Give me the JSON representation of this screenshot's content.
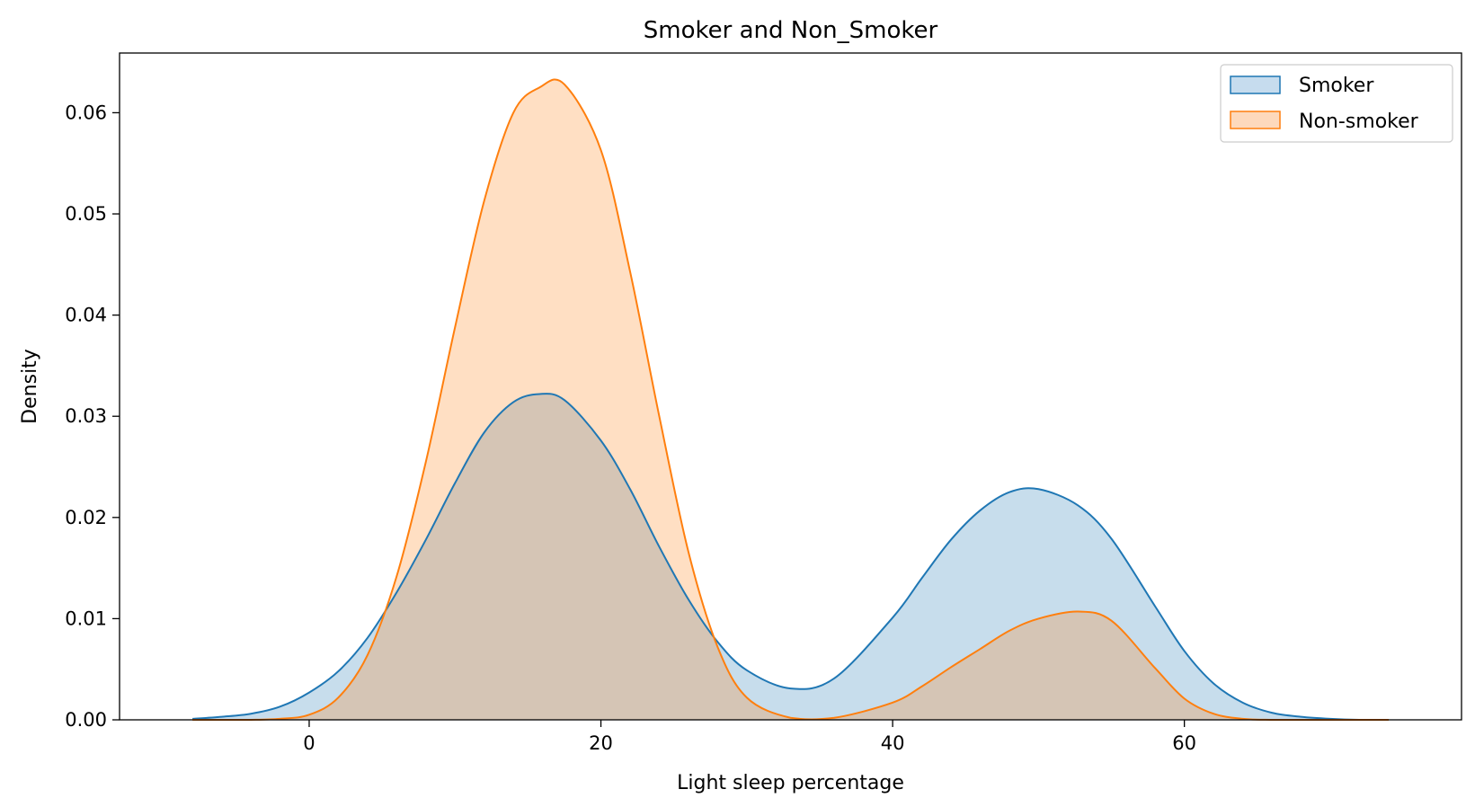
{
  "chart_data": {
    "type": "area",
    "title": "Smoker and Non_Smoker",
    "xlabel": "Light sleep percentage",
    "ylabel": "Density",
    "xlim": [
      -13,
      79
    ],
    "ylim": [
      0,
      0.0659
    ],
    "xticks": [
      0,
      20,
      40,
      60
    ],
    "yticks": [
      0.0,
      0.01,
      0.02,
      0.03,
      0.04,
      0.05,
      0.06
    ],
    "ytick_labels": [
      "0.00",
      "0.01",
      "0.02",
      "0.03",
      "0.04",
      "0.05",
      "0.06"
    ],
    "grid": false,
    "legend_position": "top-right",
    "x": [
      -8,
      -6,
      -4,
      -2,
      0,
      2,
      4,
      6,
      8,
      10,
      12,
      14,
      15.8,
      17.5,
      20,
      22,
      24,
      26,
      28,
      30,
      33,
      36,
      40,
      42,
      44,
      46,
      48,
      50,
      52.7,
      55,
      58,
      60,
      62,
      64,
      66,
      68,
      70,
      72,
      74
    ],
    "series": [
      {
        "name": "Smoker",
        "color": "#1f77b4",
        "fill": "#c6dcee",
        "values": [
          0.0001,
          0.0003,
          0.0006,
          0.0013,
          0.0027,
          0.0048,
          0.0081,
          0.0126,
          0.0178,
          0.0234,
          0.0284,
          0.0314,
          0.0322,
          0.0316,
          0.0276,
          0.0228,
          0.0171,
          0.0119,
          0.0077,
          0.0049,
          0.0031,
          0.0041,
          0.0101,
          0.014,
          0.0178,
          0.0207,
          0.0225,
          0.0228,
          0.0212,
          0.0179,
          0.0112,
          0.0068,
          0.0036,
          0.0017,
          0.0007,
          0.0003,
          0.0001,
          0.0,
          0.0
        ]
      },
      {
        "name": "Non-smoker",
        "color": "#ff7f0e",
        "fill": "#fdd9bc",
        "values": [
          0.0,
          0.0,
          0.0,
          0.0001,
          0.0005,
          0.0022,
          0.0064,
          0.0142,
          0.0255,
          0.0388,
          0.0513,
          0.06,
          0.0625,
          0.0628,
          0.0563,
          0.0443,
          0.03,
          0.0166,
          0.0072,
          0.0022,
          0.0002,
          0.0002,
          0.0017,
          0.0033,
          0.0052,
          0.007,
          0.0088,
          0.01,
          0.0107,
          0.0098,
          0.0051,
          0.0021,
          0.0006,
          0.0001,
          0.0,
          0.0,
          0.0,
          0.0,
          0.0
        ]
      }
    ]
  }
}
